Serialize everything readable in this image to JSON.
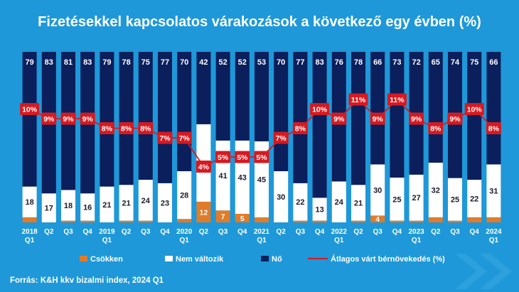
{
  "title": "Fizetésekkel kapcsolatos várakozások a következő egy évben (%)",
  "source": "Forrás: K&H kkv bizalmi index, 2024 Q1",
  "colors": {
    "background": "#1e98d8",
    "no": "#0a1f5c",
    "nem_valtozik": "#ffffff",
    "csokken": "#e07b2a",
    "line": "#d71920",
    "label_text_dark": "#1a1a2e"
  },
  "chart_data": {
    "type": "bar",
    "stacked": true,
    "categories": [
      [
        "2018",
        "Q1"
      ],
      [
        "Q2",
        ""
      ],
      [
        "Q3",
        ""
      ],
      [
        "Q4",
        ""
      ],
      [
        "2019",
        "Q1"
      ],
      [
        "Q2",
        ""
      ],
      [
        "Q3",
        ""
      ],
      [
        "Q4",
        ""
      ],
      [
        "2020",
        "Q1"
      ],
      [
        "Q2",
        ""
      ],
      [
        "Q3",
        ""
      ],
      [
        "Q4",
        ""
      ],
      [
        "2021",
        "Q1"
      ],
      [
        "Q2",
        ""
      ],
      [
        "Q3",
        ""
      ],
      [
        "Q4",
        ""
      ],
      [
        "2022",
        "Q1"
      ],
      [
        "Q2",
        ""
      ],
      [
        "Q3",
        ""
      ],
      [
        "Q4",
        ""
      ],
      [
        "2023",
        "Q1"
      ],
      [
        "Q2",
        ""
      ],
      [
        "Q3",
        ""
      ],
      [
        "Q4",
        ""
      ],
      [
        "2024",
        "Q1"
      ]
    ],
    "series": [
      {
        "name": "Csökken",
        "color": "#e07b2a",
        "values": [
          3,
          0,
          1,
          1,
          0,
          1,
          1,
          0,
          2,
          12,
          7,
          5,
          3,
          0,
          1,
          1,
          0,
          1,
          4,
          1,
          1,
          3,
          1,
          3,
          3
        ],
        "labels": [
          "",
          "",
          "",
          "",
          "",
          "",
          "",
          "",
          "",
          "12",
          "7",
          "5",
          "",
          "",
          "",
          "",
          "",
          "",
          "4",
          "",
          "",
          "",
          "",
          "",
          ""
        ]
      },
      {
        "name": "Nem változik",
        "color": "#ffffff",
        "values": [
          18,
          17,
          18,
          16,
          21,
          21,
          24,
          23,
          28,
          45,
          41,
          43,
          45,
          30,
          22,
          13,
          24,
          21,
          30,
          25,
          27,
          32,
          25,
          22,
          31
        ]
      },
      {
        "name": "Nő",
        "color": "#0a1f5c",
        "values": [
          79,
          83,
          81,
          83,
          79,
          78,
          75,
          77,
          70,
          42,
          52,
          52,
          53,
          70,
          77,
          83,
          76,
          78,
          66,
          73,
          72,
          65,
          74,
          75,
          66
        ]
      }
    ],
    "line": {
      "name": "Átlagos várt bérnövekedés (%)",
      "color": "#d71920",
      "values": [
        10,
        9,
        9,
        9,
        8,
        8,
        8,
        7,
        7,
        4,
        5,
        5,
        5,
        7,
        8,
        10,
        9,
        11,
        9,
        11,
        9,
        8,
        9,
        10,
        8
      ],
      "labels": [
        "10%",
        "9%",
        "9%",
        "9%",
        "8%",
        "8%",
        "8%",
        "7%",
        "7%",
        "4%",
        "5%",
        "5%",
        "5%",
        "7%",
        "8%",
        "10%",
        "9%",
        "11%",
        "9%",
        "11%",
        "9%",
        "8%",
        "9%",
        "10%",
        "8%"
      ]
    },
    "legend": [
      "Csökken",
      "Nem változik",
      "Nő",
      "Átlagos várt bérnövekedés (%)"
    ],
    "legend_position": "bottom",
    "ylim": [
      0,
      100
    ],
    "grid": false
  }
}
